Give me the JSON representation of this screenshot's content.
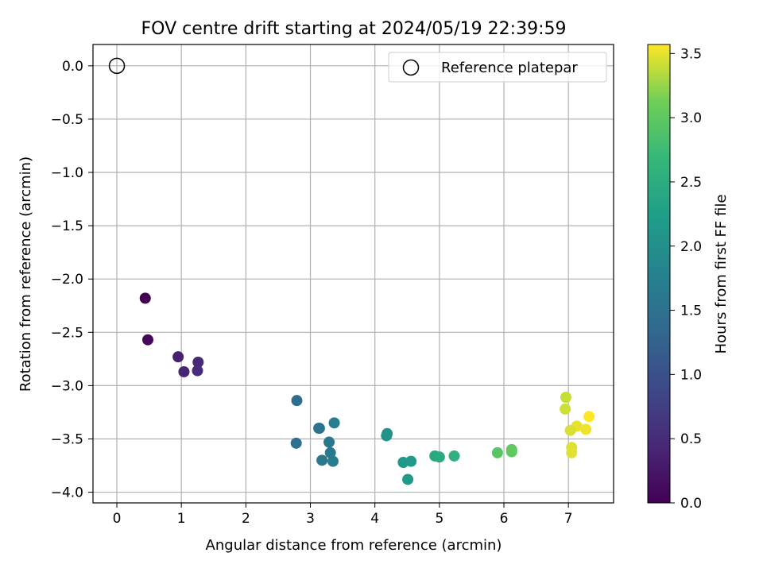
{
  "chart_data": {
    "type": "scatter",
    "title": "FOV centre drift starting at 2024/05/19 22:39:59",
    "xlabel": "Angular distance from reference (arcmin)",
    "ylabel": "Rotation from reference (arcmin)",
    "xlim": [
      -0.37,
      7.7
    ],
    "ylim": [
      -4.1,
      0.2
    ],
    "xticks": [
      0,
      1,
      2,
      3,
      4,
      5,
      6,
      7
    ],
    "yticks": [
      0.0,
      -0.5,
      -1.0,
      -1.5,
      -2.0,
      -2.5,
      -3.0,
      -3.5,
      -4.0
    ],
    "grid": true,
    "legend": {
      "location": "top-right",
      "entries": [
        "Reference platepar"
      ]
    },
    "reference": {
      "x": 0,
      "y": 0,
      "label": "Reference platepar"
    },
    "colorbar": {
      "label": "Hours from first FF file",
      "colormap": "viridis",
      "range": [
        0,
        3.57
      ],
      "ticks": [
        0.0,
        0.5,
        1.0,
        1.5,
        2.0,
        2.5,
        3.0,
        3.5
      ]
    },
    "points": [
      {
        "x": 0.44,
        "y": -2.18,
        "c": 0.0
      },
      {
        "x": 0.48,
        "y": -2.57,
        "c": 0.08
      },
      {
        "x": 0.95,
        "y": -2.73,
        "c": 0.35
      },
      {
        "x": 1.04,
        "y": -2.87,
        "c": 0.4
      },
      {
        "x": 1.26,
        "y": -2.78,
        "c": 0.45
      },
      {
        "x": 1.25,
        "y": -2.86,
        "c": 0.5
      },
      {
        "x": 2.79,
        "y": -3.14,
        "c": 1.45
      },
      {
        "x": 2.78,
        "y": -3.54,
        "c": 1.5
      },
      {
        "x": 3.14,
        "y": -3.4,
        "c": 1.55
      },
      {
        "x": 3.13,
        "y": -3.4,
        "c": 1.55
      },
      {
        "x": 3.37,
        "y": -3.35,
        "c": 1.7
      },
      {
        "x": 3.29,
        "y": -3.53,
        "c": 1.6
      },
      {
        "x": 3.31,
        "y": -3.63,
        "c": 1.65
      },
      {
        "x": 3.18,
        "y": -3.7,
        "c": 1.62
      },
      {
        "x": 3.35,
        "y": -3.71,
        "c": 1.68
      },
      {
        "x": 4.19,
        "y": -3.45,
        "c": 2.05
      },
      {
        "x": 4.18,
        "y": -3.47,
        "c": 2.05
      },
      {
        "x": 4.44,
        "y": -3.72,
        "c": 2.15
      },
      {
        "x": 4.56,
        "y": -3.71,
        "c": 2.18
      },
      {
        "x": 4.51,
        "y": -3.88,
        "c": 2.2
      },
      {
        "x": 4.93,
        "y": -3.66,
        "c": 2.4
      },
      {
        "x": 5.0,
        "y": -3.67,
        "c": 2.45
      },
      {
        "x": 5.23,
        "y": -3.66,
        "c": 2.55
      },
      {
        "x": 5.9,
        "y": -3.63,
        "c": 2.95
      },
      {
        "x": 6.12,
        "y": -3.62,
        "c": 3.0
      },
      {
        "x": 6.12,
        "y": -3.6,
        "c": 3.02
      },
      {
        "x": 6.96,
        "y": -3.11,
        "c": 3.4
      },
      {
        "x": 6.95,
        "y": -3.22,
        "c": 3.42
      },
      {
        "x": 7.32,
        "y": -3.29,
        "c": 3.57
      },
      {
        "x": 7.13,
        "y": -3.38,
        "c": 3.5
      },
      {
        "x": 7.03,
        "y": -3.42,
        "c": 3.45
      },
      {
        "x": 7.27,
        "y": -3.41,
        "c": 3.52
      },
      {
        "x": 7.05,
        "y": -3.58,
        "c": 3.47
      },
      {
        "x": 7.05,
        "y": -3.63,
        "c": 3.48
      }
    ]
  }
}
